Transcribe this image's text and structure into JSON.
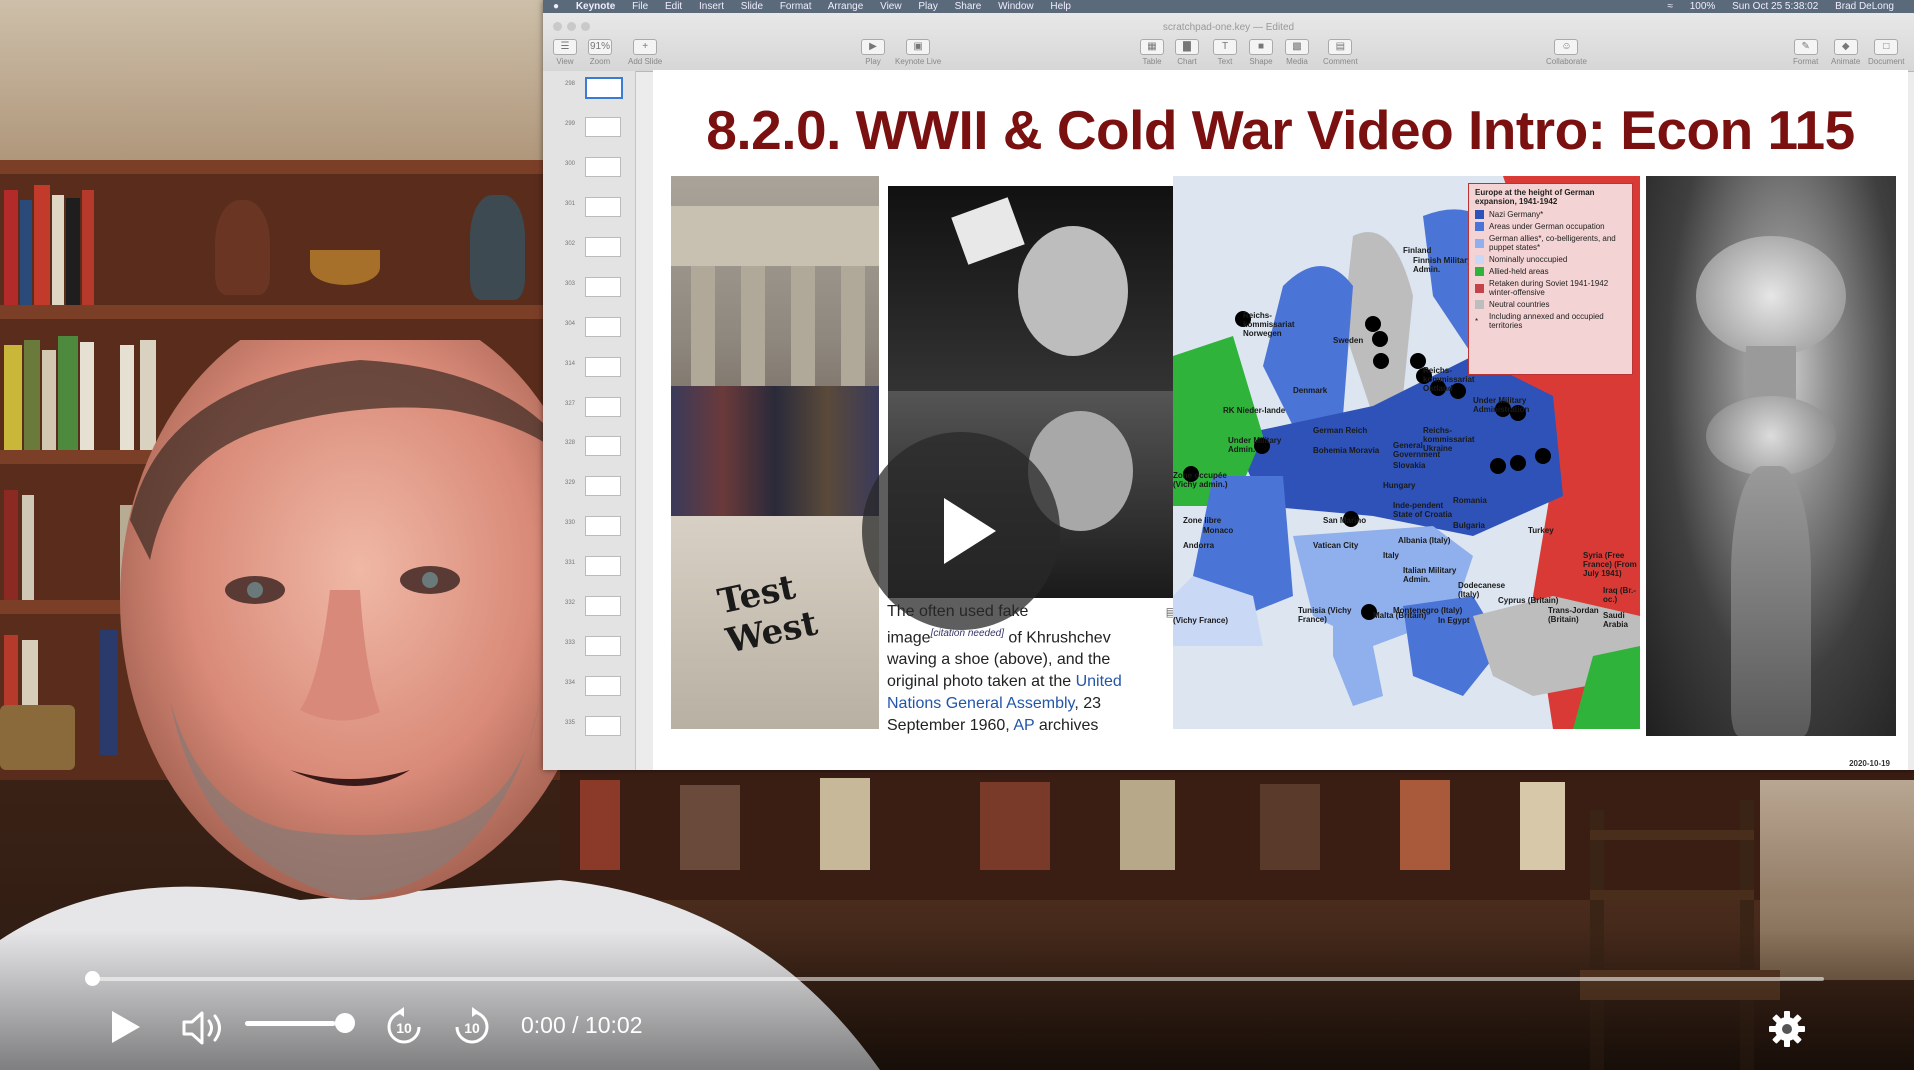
{
  "menubar": {
    "app": "Keynote",
    "items": [
      "File",
      "Edit",
      "Insert",
      "Slide",
      "Format",
      "Arrange",
      "View",
      "Play",
      "Share",
      "Window",
      "Help"
    ],
    "battery": "100%",
    "clock": "Sun Oct 25 5:38:02",
    "user": "Brad DeLong"
  },
  "window": {
    "doc_title": "scratchpad-one.key — Edited",
    "toolbar": {
      "view": "View",
      "zoom": "Zoom",
      "zoom_value": "91%",
      "add_slide": "Add Slide",
      "play": "Play",
      "keynote_live": "Keynote Live",
      "table": "Table",
      "chart": "Chart",
      "text": "Text",
      "shape": "Shape",
      "media": "Media",
      "comment": "Comment",
      "collaborate": "Collaborate",
      "format": "Format",
      "animate": "Animate",
      "document": "Document"
    }
  },
  "navigator": {
    "slide_numbers": [
      "298",
      "299",
      "300",
      "301",
      "302",
      "303",
      "304",
      "314",
      "327",
      "328",
      "329",
      "330",
      "331",
      "332",
      "333",
      "334",
      "335"
    ]
  },
  "slide": {
    "title": "8.2.0. WWII & Cold War Video Intro: Econ 115",
    "caption": {
      "l1": "The often used fake",
      "l2a": "image",
      "sup": "[citation needed]",
      "l2b": " of Khrushchev",
      "l3": "waving a shoe (above), and the",
      "l4a": "original photo taken at the ",
      "link1": "United",
      "link2": "Nations General Assembly",
      "l5b": ", 23",
      "l6a": "September 1960, ",
      "link3": "AP",
      "l6b": " archives"
    },
    "wall_text": "Test West",
    "map": {
      "legend_title": "Europe at the height of German expansion, 1941-1942",
      "legend": [
        {
          "label": "Nazi Germany*",
          "color": "#2e52b8"
        },
        {
          "label": "Areas under German occupation",
          "color": "#4a74d6"
        },
        {
          "label": "German allies*, co-belligerents, and puppet states*",
          "color": "#8fb0ec"
        },
        {
          "label": "Nominally unoccupied",
          "color": "#c9d8f5"
        },
        {
          "label": "Allied-held areas",
          "color": "#2fb33a"
        },
        {
          "label": "Retaken during Soviet 1941-1942 winter-offensive",
          "color": "#c4434a"
        },
        {
          "label": "Neutral countries",
          "color": "#bdbdbd"
        },
        {
          "label": "Including annexed and occupied territories",
          "color": ""
        }
      ],
      "labels": [
        "Finland",
        "Finnish Military Admin.",
        "Reichs-kommissariat Norwegen",
        "Sweden",
        "Denmark",
        "Reichs-kommissariat Ostland",
        "Under Military Administration",
        "Soviet Union",
        "RK Nieder-lande",
        "German Reich",
        "Reichs-kommissariat Ukraine",
        "Under Military Admin.",
        "Bohemia Moravia",
        "General Government",
        "Slovakia",
        "Hungary",
        "Zone occupée (Vichy admin.)",
        "Romania",
        "Zone libre",
        "Inde-pendent State of Croatia",
        "Bulgaria",
        "Monaco",
        "San Marino",
        "Andorra",
        "Vatican City",
        "Italy",
        "Albania (Italy)",
        "Turkey",
        "Italian Military Admin.",
        "Dodecanese (Italy)",
        "Syria (Free France) (From July 1941)",
        "Tunisia (Vichy France)",
        "Malta (Britain)",
        "Montenegro (Italy)",
        "In Egypt",
        "Cyprus (Britain)",
        "Trans-Jordan (Britain)",
        "Iraq (Br.-oc.)",
        "Saudi Arabia",
        "(Vichy France)"
      ]
    },
    "date": "2020-10-19"
  },
  "player": {
    "progress": 0.0,
    "volume": 0.9,
    "time": "0:00 / 10:02",
    "skip_back": "10",
    "skip_forward": "10"
  }
}
